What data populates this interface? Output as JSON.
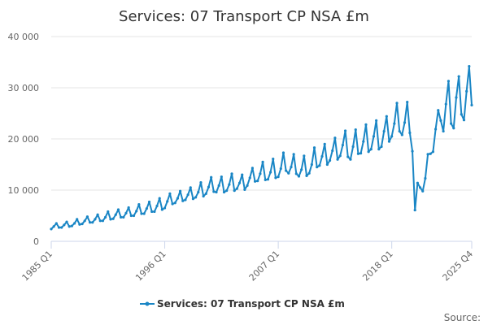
{
  "chart_data": {
    "type": "line",
    "title": "Services: 07 Transport CP NSA £m",
    "xlabel": "",
    "ylabel": "",
    "ylim": [
      0,
      40000
    ],
    "yticks": [
      0,
      10000,
      20000,
      30000,
      40000
    ],
    "ytick_labels": [
      "0",
      "10 000",
      "20 000",
      "30 000",
      "40 000"
    ],
    "xtick_labels": [
      "1985 Q1",
      "1996 Q1",
      "2007 Q1",
      "2018 Q1",
      "2025 Q4"
    ],
    "grid": true,
    "legend_position": "bottom-center",
    "source_label": "Source:",
    "color": "#1a86c5",
    "x": [
      "1985 Q1",
      "1985 Q2",
      "1985 Q3",
      "1985 Q4",
      "1986 Q1",
      "1986 Q2",
      "1986 Q3",
      "1986 Q4",
      "1987 Q1",
      "1987 Q2",
      "1987 Q3",
      "1987 Q4",
      "1988 Q1",
      "1988 Q2",
      "1988 Q3",
      "1988 Q4",
      "1989 Q1",
      "1989 Q2",
      "1989 Q3",
      "1989 Q4",
      "1990 Q1",
      "1990 Q2",
      "1990 Q3",
      "1990 Q4",
      "1991 Q1",
      "1991 Q2",
      "1991 Q3",
      "1991 Q4",
      "1992 Q1",
      "1992 Q2",
      "1992 Q3",
      "1992 Q4",
      "1993 Q1",
      "1993 Q2",
      "1993 Q3",
      "1993 Q4",
      "1994 Q1",
      "1994 Q2",
      "1994 Q3",
      "1994 Q4",
      "1995 Q1",
      "1995 Q2",
      "1995 Q3",
      "1995 Q4",
      "1996 Q1",
      "1996 Q2",
      "1996 Q3",
      "1996 Q4",
      "1997 Q1",
      "1997 Q2",
      "1997 Q3",
      "1997 Q4",
      "1998 Q1",
      "1998 Q2",
      "1998 Q3",
      "1998 Q4",
      "1999 Q1",
      "1999 Q2",
      "1999 Q3",
      "1999 Q4",
      "2000 Q1",
      "2000 Q2",
      "2000 Q3",
      "2000 Q4",
      "2001 Q1",
      "2001 Q2",
      "2001 Q3",
      "2001 Q4",
      "2002 Q1",
      "2002 Q2",
      "2002 Q3",
      "2002 Q4",
      "2003 Q1",
      "2003 Q2",
      "2003 Q3",
      "2003 Q4",
      "2004 Q1",
      "2004 Q2",
      "2004 Q3",
      "2004 Q4",
      "2005 Q1",
      "2005 Q2",
      "2005 Q3",
      "2005 Q4",
      "2006 Q1",
      "2006 Q2",
      "2006 Q3",
      "2006 Q4",
      "2007 Q1",
      "2007 Q2",
      "2007 Q3",
      "2007 Q4",
      "2008 Q1",
      "2008 Q2",
      "2008 Q3",
      "2008 Q4",
      "2009 Q1",
      "2009 Q2",
      "2009 Q3",
      "2009 Q4",
      "2010 Q1",
      "2010 Q2",
      "2010 Q3",
      "2010 Q4",
      "2011 Q1",
      "2011 Q2",
      "2011 Q3",
      "2011 Q4",
      "2012 Q1",
      "2012 Q2",
      "2012 Q3",
      "2012 Q4",
      "2013 Q1",
      "2013 Q2",
      "2013 Q3",
      "2013 Q4",
      "2014 Q1",
      "2014 Q2",
      "2014 Q3",
      "2014 Q4",
      "2015 Q1",
      "2015 Q2",
      "2015 Q3",
      "2015 Q4",
      "2016 Q1",
      "2016 Q2",
      "2016 Q3",
      "2016 Q4",
      "2017 Q1",
      "2017 Q2",
      "2017 Q3",
      "2017 Q4",
      "2018 Q1",
      "2018 Q2",
      "2018 Q3",
      "2018 Q4",
      "2019 Q1",
      "2019 Q2",
      "2019 Q3",
      "2019 Q4",
      "2020 Q1",
      "2020 Q2",
      "2020 Q3",
      "2020 Q4",
      "2021 Q1",
      "2021 Q2",
      "2021 Q3",
      "2021 Q4",
      "2022 Q1",
      "2022 Q2",
      "2022 Q3",
      "2022 Q4",
      "2023 Q1",
      "2023 Q2",
      "2023 Q3",
      "2023 Q4",
      "2024 Q1",
      "2024 Q2",
      "2024 Q3",
      "2024 Q4",
      "2025 Q1",
      "2025 Q2",
      "2025 Q3",
      "2025 Q4"
    ],
    "series": [
      {
        "name": "Services: 07 Transport CP NSA £m",
        "values": [
          2400,
          2900,
          3500,
          2700,
          2700,
          3200,
          3800,
          2900,
          3000,
          3500,
          4300,
          3300,
          3400,
          4000,
          4800,
          3700,
          3700,
          4300,
          5200,
          4000,
          4000,
          4700,
          5800,
          4300,
          4400,
          5200,
          6200,
          4700,
          4700,
          5500,
          6600,
          5000,
          5000,
          5900,
          7200,
          5400,
          5400,
          6400,
          7700,
          5800,
          5800,
          6900,
          8400,
          6200,
          6500,
          7800,
          9300,
          7300,
          7500,
          8400,
          9800,
          7900,
          8100,
          9100,
          10500,
          8300,
          8600,
          9600,
          11500,
          8800,
          9300,
          10600,
          12500,
          9700,
          9600,
          10900,
          12600,
          9600,
          9900,
          11100,
          13200,
          9900,
          10300,
          11400,
          13000,
          10100,
          10900,
          12400,
          14300,
          11700,
          11800,
          13200,
          15500,
          12000,
          12100,
          13500,
          16100,
          12400,
          12600,
          14200,
          17300,
          13800,
          13300,
          14500,
          17000,
          13200,
          12700,
          14000,
          16700,
          12800,
          13300,
          15000,
          18300,
          14500,
          14800,
          16600,
          19000,
          15000,
          15800,
          17700,
          20200,
          16000,
          16700,
          18800,
          21600,
          16500,
          16000,
          18500,
          21800,
          17100,
          17200,
          19500,
          22800,
          17500,
          18000,
          20500,
          23600,
          18000,
          18500,
          21500,
          24400,
          19500,
          20500,
          23000,
          27000,
          21500,
          20800,
          23200,
          27200,
          21200,
          17600,
          6100,
          11400,
          10500,
          9800,
          12300,
          17000,
          17100,
          17500,
          21900,
          25600,
          23600,
          21500,
          26800,
          31300,
          23000,
          22100,
          28100,
          32200,
          24800,
          23700,
          29300,
          34200,
          26600
        ]
      }
    ]
  }
}
